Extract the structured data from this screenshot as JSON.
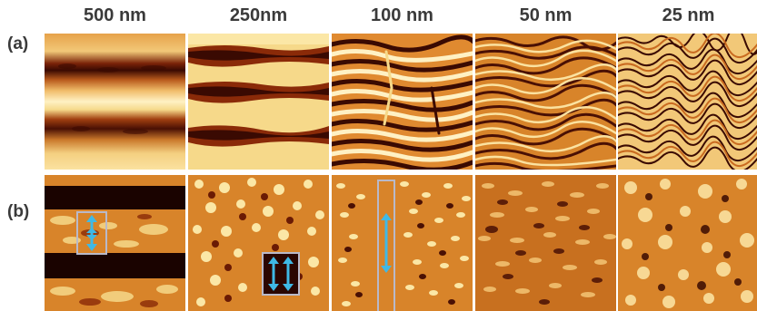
{
  "columns": [
    "500 nm",
    "250nm",
    "100 nm",
    "50 nm",
    "25 nm"
  ],
  "rows": [
    "(a)",
    "(b)"
  ],
  "colors": {
    "dark": "#3a0a02",
    "mid_dark": "#8a2a08",
    "orange": "#d8842a",
    "light": "#f6d98a",
    "pale": "#fff1c4",
    "marker_box": "#b9b9c9",
    "arrow": "#3fb9e6"
  }
}
